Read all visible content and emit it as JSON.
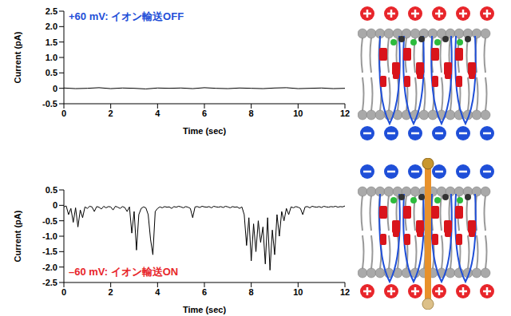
{
  "chart_data": [
    {
      "type": "line",
      "annotations": [
        {
          "text": "+60 mV: イオン輸送OFF",
          "color": "#1f4fd8"
        }
      ],
      "x_label": "Time (sec)",
      "y_label": "Current (pA)",
      "color": "#000000",
      "x": [
        0,
        0.5,
        1,
        1.5,
        2,
        2.5,
        3,
        3.5,
        4,
        4.5,
        5,
        5.5,
        6,
        6.5,
        7,
        7.5,
        8,
        8.5,
        9,
        9.5,
        10,
        10.5,
        11,
        11.5,
        12
      ],
      "values": [
        0.01,
        -0.01,
        0,
        0.02,
        -0.01,
        0.01,
        0,
        -0.02,
        0.01,
        0,
        0.01,
        -0.01,
        0.02,
        0,
        -0.01,
        0.01,
        0,
        -0.01,
        0.01,
        0.02,
        -0.01,
        0,
        0.01,
        -0.01,
        0
      ],
      "xlim": [
        0,
        12
      ],
      "xticks": [
        0,
        2,
        4,
        6,
        8,
        10,
        12
      ],
      "ylim": [
        -0.5,
        2.5
      ],
      "yticks": [
        -0.5,
        0,
        0.5,
        {
          "value": 1,
          "label": "1.0"
        },
        1.5,
        {
          "value": 2,
          "label": "2.0"
        },
        2.5
      ]
    },
    {
      "type": "line",
      "annotations": [
        {
          "text": "–60 mV: イオン輸送ON",
          "color": "#e8262b"
        }
      ],
      "x_label": "Time (sec)",
      "y_label": "Current (pA)",
      "color": "#000000",
      "x": [
        0,
        0.1,
        0.2,
        0.3,
        0.4,
        0.5,
        0.6,
        0.7,
        0.8,
        0.9,
        1,
        1.1,
        1.2,
        1.3,
        1.4,
        1.5,
        1.6,
        1.7,
        1.8,
        1.9,
        2,
        2.1,
        2.2,
        2.3,
        2.4,
        2.5,
        2.6,
        2.7,
        2.8,
        2.9,
        3,
        3.1,
        3.2,
        3.3,
        3.4,
        3.5,
        3.6,
        3.7,
        3.8,
        3.9,
        4,
        4.1,
        4.2,
        4.3,
        4.4,
        4.5,
        4.6,
        4.7,
        4.8,
        4.9,
        5,
        5.1,
        5.2,
        5.3,
        5.4,
        5.5,
        5.6,
        5.7,
        5.8,
        5.9,
        6,
        6.1,
        6.2,
        6.3,
        6.4,
        6.5,
        6.6,
        6.7,
        6.8,
        6.9,
        7,
        7.1,
        7.2,
        7.3,
        7.4,
        7.5,
        7.6,
        7.7,
        7.8,
        7.9,
        8,
        8.1,
        8.2,
        8.3,
        8.4,
        8.5,
        8.6,
        8.7,
        8.8,
        8.9,
        9,
        9.1,
        9.2,
        9.3,
        9.4,
        9.5,
        9.6,
        9.7,
        9.8,
        9.9,
        10,
        10.1,
        10.2,
        10.3,
        10.4,
        10.5,
        10.6,
        10.7,
        10.8,
        10.9,
        11,
        11.1,
        11.2,
        11.3,
        11.4,
        11.5,
        11.6,
        11.7,
        11.8,
        11.9,
        12
      ],
      "values": [
        -0.05,
        -0.02,
        -0.3,
        -0.1,
        -0.55,
        -0.08,
        -0.7,
        -0.15,
        -0.4,
        -0.05,
        -0.1,
        -0.03,
        -0.05,
        -0.2,
        -0.04,
        -0.06,
        -0.12,
        -0.03,
        -0.08,
        -0.04,
        -0.05,
        -0.15,
        -0.03,
        -0.06,
        -0.1,
        -0.04,
        -0.07,
        -0.2,
        -0.05,
        -0.9,
        -0.2,
        -1.45,
        -0.3,
        -0.1,
        -0.05,
        -0.08,
        -0.3,
        -1.1,
        -1.6,
        -0.2,
        -0.1,
        -0.05,
        -0.08,
        -0.04,
        -0.06,
        -0.05,
        -0.1,
        -0.04,
        -0.06,
        -0.03,
        -0.05,
        -0.08,
        -0.04,
        -0.06,
        -0.1,
        -0.4,
        -0.05,
        -0.04,
        -0.07,
        -0.03,
        -0.05,
        -0.06,
        -0.04,
        -0.08,
        -0.03,
        -0.05,
        -0.06,
        -0.04,
        -0.07,
        -0.03,
        -0.05,
        -0.08,
        -0.04,
        -0.06,
        -0.05,
        -0.1,
        -0.05,
        -0.3,
        -1.3,
        -0.4,
        -1.8,
        -0.6,
        -1.5,
        -0.5,
        -1.2,
        -0.7,
        -1.9,
        -0.4,
        -2.1,
        -0.8,
        -1.6,
        -0.3,
        -1.0,
        -0.2,
        -0.5,
        -0.1,
        -0.3,
        -0.05,
        -0.08,
        -0.04,
        -0.06,
        -0.1,
        -0.3,
        -0.05,
        -0.04,
        -0.08,
        -0.03,
        -0.05,
        -0.06,
        -0.04,
        -0.07,
        -0.03,
        -0.05,
        -0.06,
        -0.04,
        -0.05,
        -0.03,
        -0.06,
        -0.04,
        -0.05,
        -0.02
      ],
      "xlim": [
        0,
        12
      ],
      "xticks": [
        0,
        2,
        4,
        6,
        8,
        10,
        12
      ],
      "ylim": [
        -2.5,
        0.5
      ],
      "yticks": [
        -2.5,
        {
          "value": -2,
          "label": "-2.0"
        },
        -1.5,
        {
          "value": -1,
          "label": "-1.0"
        },
        -0.5,
        0,
        0.5
      ]
    }
  ]
}
